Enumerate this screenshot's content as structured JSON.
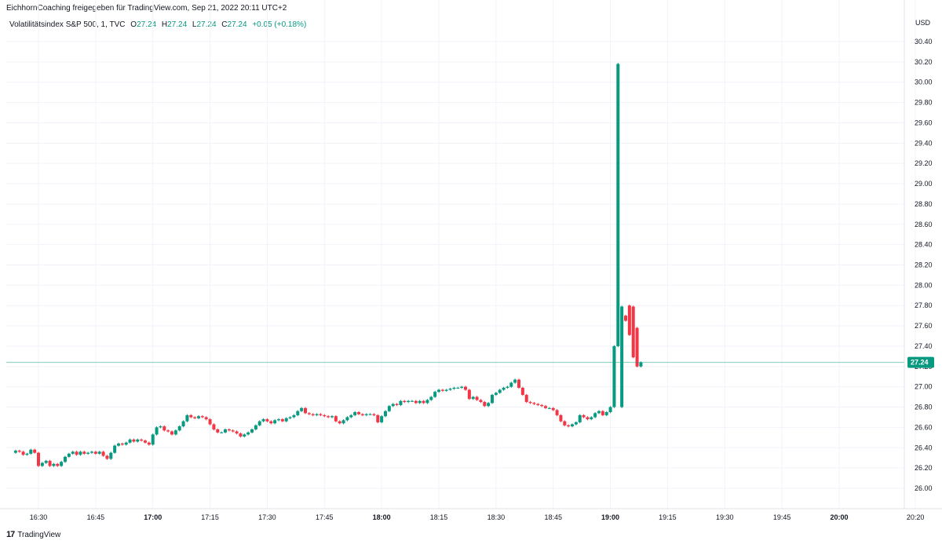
{
  "header": {
    "shared_by": "EichhornCoaching freigegeben für TradingView.com, Sep 21, 2022 20:11 UTC+2"
  },
  "legend": {
    "symbol": "Volatilitätsindex S&P 500, 1, TVC",
    "o_label": "O",
    "o_value": "27.24",
    "h_label": "H",
    "h_value": "27.24",
    "l_label": "L",
    "l_value": "27.24",
    "c_label": "C",
    "c_value": "27.24",
    "change": "+0.05 (+0.18%)"
  },
  "footer": {
    "brand": "TradingView"
  },
  "colors": {
    "up": "#089981",
    "down": "#f23645",
    "grid": "#f0f3fa",
    "text": "#131722"
  },
  "chart_data": {
    "type": "candlestick",
    "currency": "USD",
    "ylim": [
      25.85,
      30.5
    ],
    "y_ticks": [
      "26.00",
      "26.20",
      "26.40",
      "26.60",
      "26.80",
      "27.00",
      "27.20",
      "27.40",
      "27.60",
      "27.80",
      "28.00",
      "28.20",
      "28.40",
      "28.60",
      "28.80",
      "29.00",
      "29.20",
      "29.40",
      "29.60",
      "29.80",
      "30.00",
      "30.20",
      "30.40"
    ],
    "x_ticks": [
      {
        "label": "16:30",
        "bold": false,
        "min": 990
      },
      {
        "label": "16:45",
        "bold": false,
        "min": 1005
      },
      {
        "label": "17:00",
        "bold": true,
        "min": 1020
      },
      {
        "label": "17:15",
        "bold": false,
        "min": 1035
      },
      {
        "label": "17:30",
        "bold": false,
        "min": 1050
      },
      {
        "label": "17:45",
        "bold": false,
        "min": 1065
      },
      {
        "label": "18:00",
        "bold": true,
        "min": 1080
      },
      {
        "label": "18:15",
        "bold": false,
        "min": 1095
      },
      {
        "label": "18:30",
        "bold": false,
        "min": 1110
      },
      {
        "label": "18:45",
        "bold": false,
        "min": 1125
      },
      {
        "label": "19:00",
        "bold": true,
        "min": 1140
      },
      {
        "label": "19:15",
        "bold": false,
        "min": 1155
      },
      {
        "label": "19:30",
        "bold": false,
        "min": 1170
      },
      {
        "label": "19:45",
        "bold": false,
        "min": 1185
      },
      {
        "label": "20:00",
        "bold": true,
        "min": 1200
      },
      {
        "label": "20:20",
        "bold": false,
        "min": 1220
      }
    ],
    "start_min": 984,
    "last_price": "27.24",
    "last_value": 27.24,
    "closes": [
      26.37,
      26.36,
      26.33,
      26.34,
      26.38,
      26.35,
      26.22,
      26.25,
      26.27,
      26.22,
      26.24,
      26.22,
      26.26,
      26.31,
      26.34,
      26.36,
      26.33,
      26.36,
      26.34,
      26.35,
      26.36,
      26.34,
      26.36,
      26.32,
      26.29,
      26.35,
      26.42,
      26.44,
      26.43,
      26.45,
      26.48,
      26.46,
      26.48,
      26.47,
      26.45,
      26.43,
      26.53,
      26.6,
      26.61,
      26.57,
      26.56,
      26.53,
      26.57,
      26.61,
      26.66,
      26.72,
      26.7,
      26.69,
      26.71,
      26.7,
      26.68,
      26.63,
      26.58,
      26.55,
      26.55,
      26.58,
      26.57,
      26.56,
      26.54,
      26.51,
      26.53,
      26.55,
      26.58,
      26.62,
      26.66,
      26.68,
      26.66,
      26.64,
      26.67,
      26.68,
      26.66,
      26.69,
      26.7,
      26.72,
      26.76,
      26.79,
      26.74,
      26.73,
      26.72,
      26.73,
      26.72,
      26.71,
      26.7,
      26.71,
      26.66,
      26.64,
      26.67,
      26.7,
      26.72,
      26.75,
      26.73,
      26.72,
      26.73,
      26.73,
      26.72,
      26.65,
      26.71,
      26.76,
      26.81,
      26.83,
      26.82,
      26.86,
      26.85,
      26.86,
      26.86,
      26.84,
      26.86,
      26.84,
      26.87,
      26.9,
      26.95,
      26.97,
      26.96,
      26.97,
      26.98,
      26.99,
      26.99,
      27.0,
      26.97,
      26.88,
      26.9,
      26.87,
      26.85,
      26.81,
      26.84,
      26.92,
      26.94,
      26.97,
      26.99,
      27.0,
      27.04,
      27.07,
      26.99,
      26.92,
      26.85,
      26.84,
      26.83,
      26.82,
      26.81,
      26.79,
      26.79,
      26.77,
      26.72,
      26.66,
      26.62,
      26.61,
      26.63,
      26.65,
      26.72,
      26.7,
      26.68,
      26.7,
      26.74,
      26.76,
      26.72,
      26.75,
      26.8,
      27.4,
      30.18,
      27.79,
      27.65,
      27.51,
      27.29,
      27.2,
      27.24
    ],
    "big_opens": {
      "159": 26.8,
      "160": 27.7,
      "161": 27.8,
      "162": 27.79,
      "163": 27.58
    }
  }
}
